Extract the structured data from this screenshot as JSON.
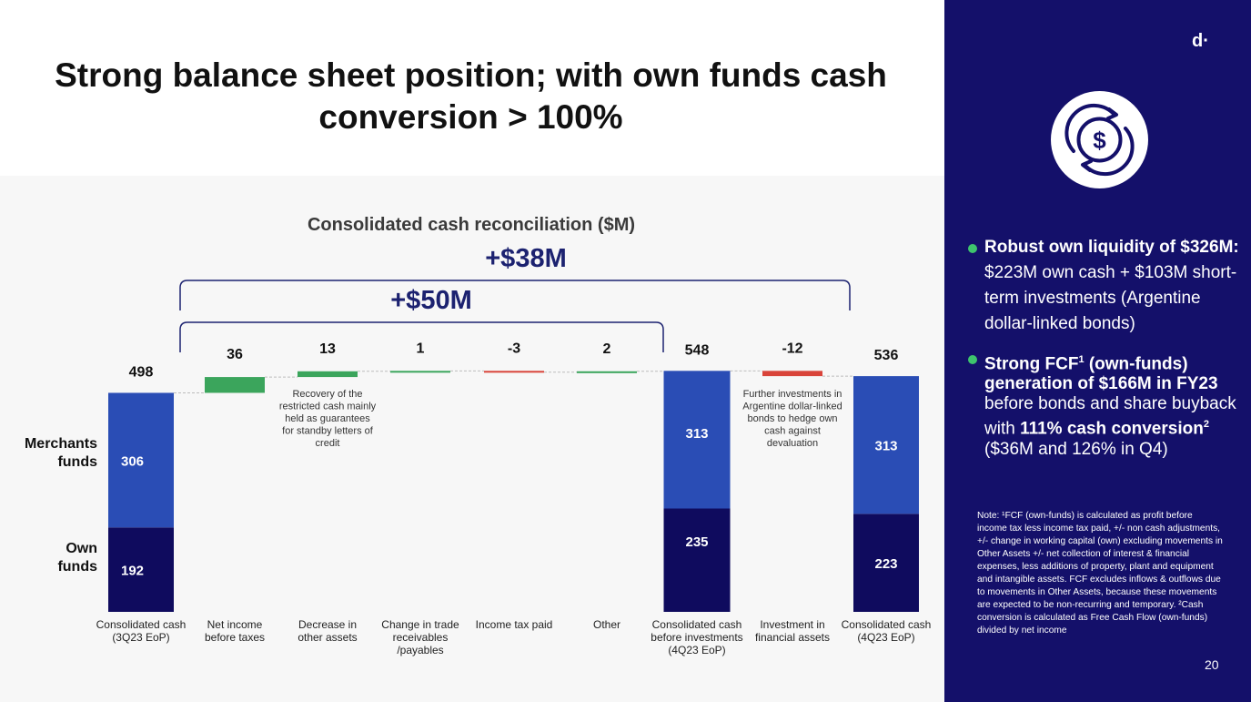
{
  "page": {
    "title_line1": "Strong balance sheet position; with own funds cash",
    "title_line2": "conversion > 100%",
    "page_number": "20",
    "logo": "d·"
  },
  "chart_data": {
    "type": "waterfall",
    "title": "Consolidated cash reconciliation ($M)",
    "unit": "$M",
    "categories": [
      "Consolidated cash (3Q23 EoP)",
      "Net income before taxes",
      "Decrease in other assets",
      "Change in trade receivables /payables",
      "Income tax paid",
      "Other",
      "Consolidated cash before investments (4Q23 EoP)",
      "Investment in financial assets",
      "Consolidated cash (4Q23 EoP)"
    ],
    "category_lines": [
      [
        "Consolidated cash",
        "(3Q23 EoP)"
      ],
      [
        "Net income",
        "before taxes"
      ],
      [
        "Decrease in",
        "other assets"
      ],
      [
        "Change in trade",
        "receivables",
        "/payables"
      ],
      [
        "Income tax paid"
      ],
      [
        "Other"
      ],
      [
        "Consolidated cash",
        "before investments",
        "(4Q23 EoP)"
      ],
      [
        "Investment in",
        "financial assets"
      ],
      [
        "Consolidated cash",
        "(4Q23 EoP)"
      ]
    ],
    "values": [
      498,
      36,
      13,
      1,
      -3,
      2,
      548,
      -12,
      536
    ],
    "value_labels": [
      "498",
      "36",
      "13",
      "1",
      "-3",
      "2",
      "548",
      "-12",
      "536"
    ],
    "bar_kind": [
      "total",
      "delta",
      "delta",
      "delta",
      "delta",
      "delta",
      "total",
      "delta",
      "total"
    ],
    "totals_breakdown": {
      "0": {
        "own_funds": 192,
        "merchants_funds": 306
      },
      "6": {
        "own_funds": 235,
        "merchants_funds": 313
      },
      "8": {
        "own_funds": 223,
        "merchants_funds": 313
      }
    },
    "series": [
      {
        "name": "Merchants funds",
        "color": "#2a4db5"
      },
      {
        "name": "Own funds",
        "color": "#0f0b5e"
      }
    ],
    "series_label_lines": [
      [
        "Merchants",
        "funds"
      ],
      [
        "Own",
        "funds"
      ]
    ],
    "brackets": [
      {
        "label": "+$50M",
        "from_index": 1,
        "to_index": 5
      },
      {
        "label": "+$38M",
        "from_index": 1,
        "to_index": 8
      }
    ],
    "annotations": [
      {
        "index": 2,
        "lines": [
          "Recovery of the",
          "restricted cash mainly",
          "held as guarantees",
          "for standby letters of",
          "credit"
        ]
      },
      {
        "index": 7,
        "lines": [
          "Further investments in",
          "Argentine dollar-linked",
          "bonds to hedge own",
          "cash against",
          "devaluation"
        ]
      }
    ],
    "colors": {
      "increase": "#3ba55c",
      "decrease": "#d9443a",
      "merchants": "#2a4db5",
      "own": "#0f0b5e",
      "bracket": "#1c2270"
    }
  },
  "sidebar": {
    "bullet1_bold": "Robust own liquidity of $326M:",
    "bullet1_text": " $223M own cash + $103M short-term investments (Argentine dollar-linked bonds)",
    "bullet2_bold_a": "Strong FCF",
    "bullet2_sup_a": "1",
    "bullet2_bold_b": " (own-funds) generation of $166M in FY23",
    "bullet2_text_a": " before bonds and share buyback with ",
    "bullet2_bold_c": "111% cash conversion",
    "bullet2_sup_b": "2",
    "bullet2_text_b": " ($36M and 126% in Q4)",
    "note": "Note: ¹FCF (own-funds) is calculated as profit before income tax less income tax paid, +/- non cash adjustments, +/- change in working capital (own) excluding movements in Other Assets +/- net collection of interest & financial expenses, less additions of property, plant and equipment and intangible assets. FCF excludes inflows & outflows due to movements in Other Assets, because these movements are expected to be non-recurring and temporary. ²Cash conversion is calculated as Free Cash Flow (own-funds) divided by net income"
  }
}
